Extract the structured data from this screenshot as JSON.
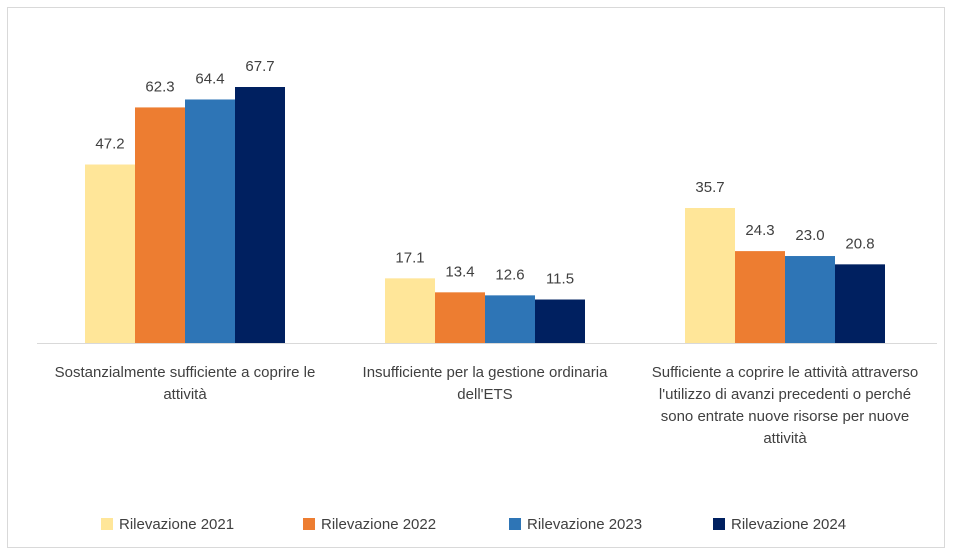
{
  "chart_data": {
    "type": "bar",
    "categories": [
      "Sostanzialmente sufficiente a coprire le attività",
      "Insufficiente per la gestione ordinaria dell'ETS",
      "Sufficiente a coprire le attività attraverso l'utilizzo di avanzi precedenti o perché sono entrate nuove risorse per nuove attività"
    ],
    "series": [
      {
        "name": "Rilevazione 2021",
        "color": "#FFE699",
        "values": [
          47.2,
          17.1,
          35.7
        ]
      },
      {
        "name": "Rilevazione 2022",
        "color": "#ED7D31",
        "values": [
          62.3,
          13.4,
          24.3
        ]
      },
      {
        "name": "Rilevazione 2023",
        "color": "#2E75B6",
        "values": [
          64.4,
          12.6,
          23.0
        ],
        "value_labels": [
          "64.4",
          "12.6",
          "23.0"
        ]
      },
      {
        "name": "Rilevazione 2024",
        "color": "#002060",
        "values": [
          67.7,
          11.5,
          20.8
        ]
      }
    ],
    "legend": "bottom"
  }
}
